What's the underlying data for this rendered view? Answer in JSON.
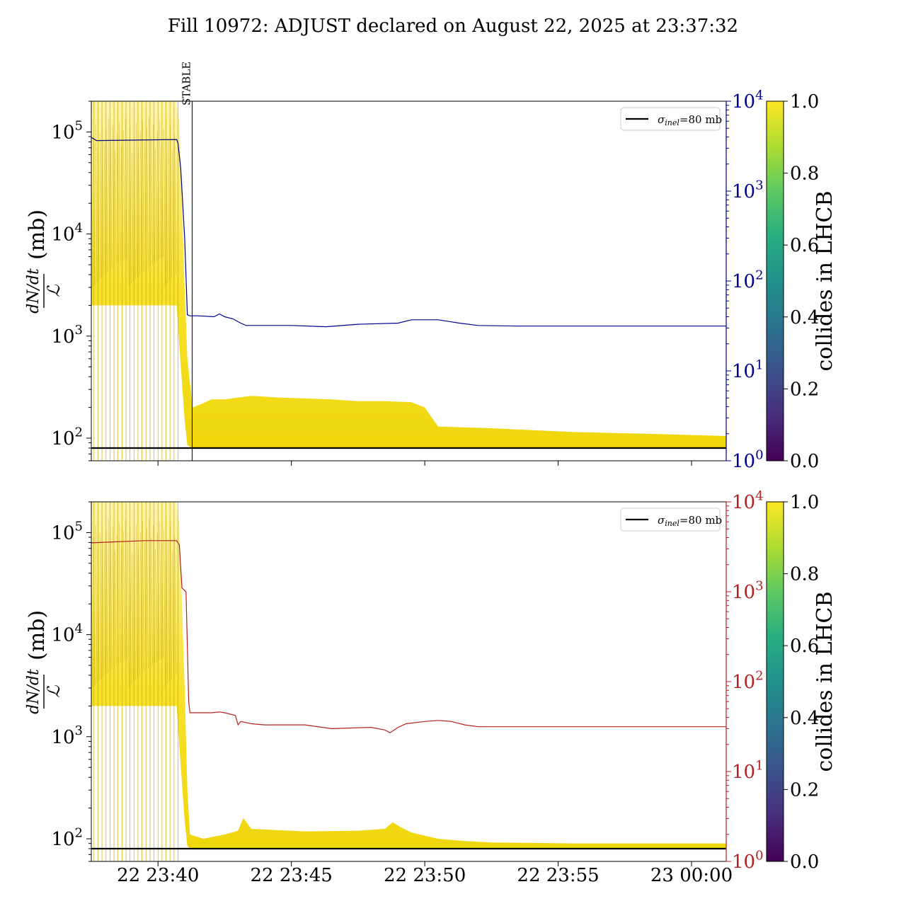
{
  "title": "Fill 10972: ADJUST declared on August 22, 2025 at 23:37:32",
  "chart_data": [
    {
      "type": "line",
      "panel": "top",
      "ylabel": "dN/dt / ℒ (mb)",
      "yscale": "log",
      "ylim": [
        60,
        200000
      ],
      "y_ticks": [
        {
          "exp": "2",
          "value": 100
        },
        {
          "exp": "3",
          "value": 1000
        },
        {
          "exp": "4",
          "value": 10000
        },
        {
          "exp": "5",
          "value": 100000
        }
      ],
      "x_ticks": [
        "22 23:40",
        "22 23:45",
        "22 23:50",
        "22 23:55",
        "23 00:00"
      ],
      "x_tick_minutes": [
        2.5,
        7.5,
        12.5,
        17.5,
        22.5
      ],
      "xlim_minutes": [
        0,
        23.8
      ],
      "annotation": {
        "label": "STABLE",
        "x_minutes": 3.78
      },
      "reference_line": {
        "value": 80,
        "legend": "σinel=80 mb",
        "legend_sigma": "σ",
        "legend_sub": "inel",
        "legend_rest": "=80 mb"
      },
      "secondary_axis": {
        "color": "#00008b",
        "yscale": "log",
        "ylim": [
          1,
          10000
        ],
        "ticks": [
          {
            "exp": "0",
            "value": 1
          },
          {
            "exp": "1",
            "value": 10
          },
          {
            "exp": "2",
            "value": 100
          },
          {
            "exp": "3",
            "value": 1000
          },
          {
            "exp": "4",
            "value": 10000
          }
        ],
        "series": {
          "color": "#00008b",
          "x_minutes": [
            0,
            0.2,
            3.2,
            3.25,
            3.35,
            3.5,
            3.6,
            3.7,
            4.0,
            4.6,
            4.8,
            5.0,
            5.3,
            5.6,
            5.8,
            6.3,
            7.5,
            8.8,
            10.0,
            11.5,
            12.0,
            13.0,
            13.8,
            14.5,
            16.0,
            20.0,
            23.8
          ],
          "values": [
            3950,
            3650,
            3750,
            3400,
            1800,
            300,
            42,
            41,
            41,
            40,
            43,
            40,
            38,
            34,
            32,
            32,
            32,
            31,
            33,
            34,
            37,
            37,
            34,
            32,
            31.5,
            31.5,
            31.5
          ]
        }
      },
      "colorbar": {
        "label": "collides in LHCB",
        "ticks": [
          "0.0",
          "0.2",
          "0.4",
          "0.6",
          "0.8",
          "1.0"
        ],
        "colormap": "viridis"
      },
      "bunch_band": {
        "color": "#f5dc00",
        "x_minutes": [
          0,
          3.2,
          3.3,
          3.5,
          3.6,
          3.8,
          4.2,
          4.5,
          5.0,
          6.0,
          7.0,
          8.0,
          9.0,
          10.0,
          11.0,
          12.0,
          12.5,
          13.0,
          15.0,
          18.0,
          21.0,
          23.8
        ],
        "low": [
          2000,
          2000,
          800,
          150,
          85,
          80,
          80,
          80,
          80,
          80,
          80,
          80,
          80,
          80,
          80,
          80,
          80,
          80,
          80,
          80,
          80,
          80
        ],
        "high": [
          200000,
          200000,
          120000,
          3000,
          600,
          200,
          220,
          240,
          240,
          260,
          250,
          245,
          240,
          230,
          230,
          225,
          200,
          130,
          125,
          115,
          110,
          105
        ]
      }
    },
    {
      "type": "line",
      "panel": "bottom",
      "ylabel": "dN/dt / ℒ (mb)",
      "yscale": "log",
      "ylim": [
        60,
        200000
      ],
      "y_ticks": [
        {
          "exp": "2",
          "value": 100
        },
        {
          "exp": "3",
          "value": 1000
        },
        {
          "exp": "4",
          "value": 10000
        },
        {
          "exp": "5",
          "value": 100000
        }
      ],
      "x_ticks": [
        "22 23:40",
        "22 23:45",
        "22 23:50",
        "22 23:55",
        "23 00:00"
      ],
      "x_tick_minutes": [
        2.5,
        7.5,
        12.5,
        17.5,
        22.5
      ],
      "xlim_minutes": [
        0,
        23.8
      ],
      "reference_line": {
        "value": 80,
        "legend": "σinel=80 mb",
        "legend_sigma": "σ",
        "legend_sub": "inel",
        "legend_rest": "=80 mb"
      },
      "secondary_axis": {
        "color": "#b22222",
        "yscale": "log",
        "ylim": [
          1,
          10000
        ],
        "ticks": [
          {
            "exp": "0",
            "value": 1
          },
          {
            "exp": "1",
            "value": 10
          },
          {
            "exp": "2",
            "value": 100
          },
          {
            "exp": "3",
            "value": 1000
          },
          {
            "exp": "4",
            "value": 10000
          }
        ],
        "series": {
          "color": "#b22222",
          "x_minutes": [
            0,
            0.5,
            2.0,
            3.2,
            3.3,
            3.4,
            3.55,
            3.65,
            3.7,
            4.5,
            4.8,
            5.0,
            5.4,
            5.5,
            5.6,
            6.0,
            6.5,
            8.0,
            9.0,
            10.5,
            11.0,
            11.2,
            11.5,
            11.8,
            12.5,
            13.0,
            13.5,
            14.0,
            14.5,
            16.0,
            20.0,
            23.8
          ],
          "values": [
            3500,
            3550,
            3700,
            3700,
            3300,
            1100,
            1000,
            60,
            45,
            45,
            46,
            45,
            42,
            33,
            36,
            34,
            33,
            33,
            30,
            31,
            29,
            27,
            31,
            34,
            36,
            37,
            36,
            33,
            31.5,
            31.5,
            31.5,
            31.5
          ]
        }
      },
      "colorbar": {
        "label": "collides in LHCB",
        "ticks": [
          "0.0",
          "0.2",
          "0.4",
          "0.6",
          "0.8",
          "1.0"
        ],
        "colormap": "viridis"
      },
      "bunch_band": {
        "color": "#f5dc00",
        "x_minutes": [
          0,
          3.2,
          3.3,
          3.5,
          3.6,
          3.7,
          4.2,
          5.0,
          5.5,
          5.7,
          6.0,
          8.0,
          10.0,
          11.0,
          11.3,
          11.6,
          12.0,
          13.0,
          14.0,
          15.0,
          18.0,
          21.0,
          23.8
        ],
        "low": [
          2000,
          2000,
          800,
          150,
          85,
          80,
          80,
          80,
          80,
          80,
          80,
          80,
          80,
          80,
          80,
          80,
          80,
          80,
          80,
          80,
          80,
          80,
          80
        ],
        "high": [
          200000,
          200000,
          120000,
          3000,
          300,
          110,
          100,
          110,
          120,
          160,
          125,
          118,
          120,
          125,
          145,
          130,
          115,
          100,
          95,
          92,
          90,
          90,
          90
        ]
      }
    }
  ]
}
